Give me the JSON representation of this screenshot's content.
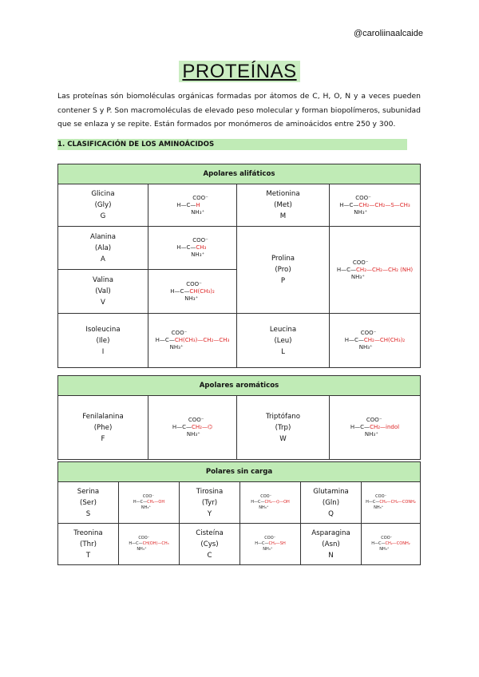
{
  "handle": "@caroliinaalcaide",
  "title": "PROTEÍNAS",
  "intro": "Las proteínas són biomoléculas orgánicas formadas por átomos de C, H, O, N y a veces pueden contener S y P. Son macromoléculas de elevado peso molecular y forman biopolímeros, subunidad que se enlaza y se repite. Están formados por monómeros de aminoácidos entre 250 y 300.",
  "section": "1. CLASIFICACIÓN DE LOS AMINOÁCIDOS",
  "colors": {
    "accent": "#c0ebb6",
    "side_chain": "#d22222"
  },
  "core": {
    "top": "COO⁻",
    "left": "H—C—",
    "bottom": "NH₃⁺"
  },
  "tables": [
    {
      "header": "Apolares alifáticos",
      "aa": [
        {
          "name": "Glicina",
          "abbr": "(Gly)",
          "code": "G",
          "chain": "H"
        },
        {
          "name": "Metionina",
          "abbr": "(Met)",
          "code": "M",
          "chain": "CH₂—CH₂—S—CH₃"
        },
        {
          "name": "Alanina",
          "abbr": "(Ala)",
          "code": "A",
          "chain": "CH₃"
        },
        {
          "name": "Prolina",
          "abbr": "(Pro)",
          "code": "P",
          "chain": "CH₂—CH₂—CH₂ (NH)"
        },
        {
          "name": "Valina",
          "abbr": "(Val)",
          "code": "V",
          "chain": "CH(CH₃)₂"
        },
        {
          "name": "Isoleucina",
          "abbr": "(Ile)",
          "code": "I",
          "chain": "CH(CH₃)—CH₂—CH₃"
        },
        {
          "name": "Leucina",
          "abbr": "(Leu)",
          "code": "L",
          "chain": "CH₂—CH(CH₃)₂"
        }
      ]
    },
    {
      "header": "Apolares aromáticos",
      "aa": [
        {
          "name": "Fenilalanina",
          "abbr": "(Phe)",
          "code": "F",
          "chain": "CH₂—⌬"
        },
        {
          "name": "Triptófano",
          "abbr": "(Trp)",
          "code": "W",
          "chain": "CH₂—indol"
        }
      ]
    },
    {
      "header": "Polares sin carga",
      "aa": [
        {
          "name": "Serina",
          "abbr": "(Ser)",
          "code": "S",
          "chain": "CH₂—OH"
        },
        {
          "name": "Tirosina",
          "abbr": "(Tyr)",
          "code": "Y",
          "chain": "CH₂—⌬—OH"
        },
        {
          "name": "Glutamina",
          "abbr": "(Gln)",
          "code": "Q",
          "chain": "CH₂—CH₂—CONH₂"
        },
        {
          "name": "Treonina",
          "abbr": "(Thr)",
          "code": "T",
          "chain": "CH(OH)—CH₃"
        },
        {
          "name": "Cisteína",
          "abbr": "(Cys)",
          "code": "C",
          "chain": "CH₂—SH"
        },
        {
          "name": "Asparagina",
          "abbr": "(Asn)",
          "code": "N",
          "chain": "CH₂—CONH₂"
        }
      ]
    }
  ]
}
